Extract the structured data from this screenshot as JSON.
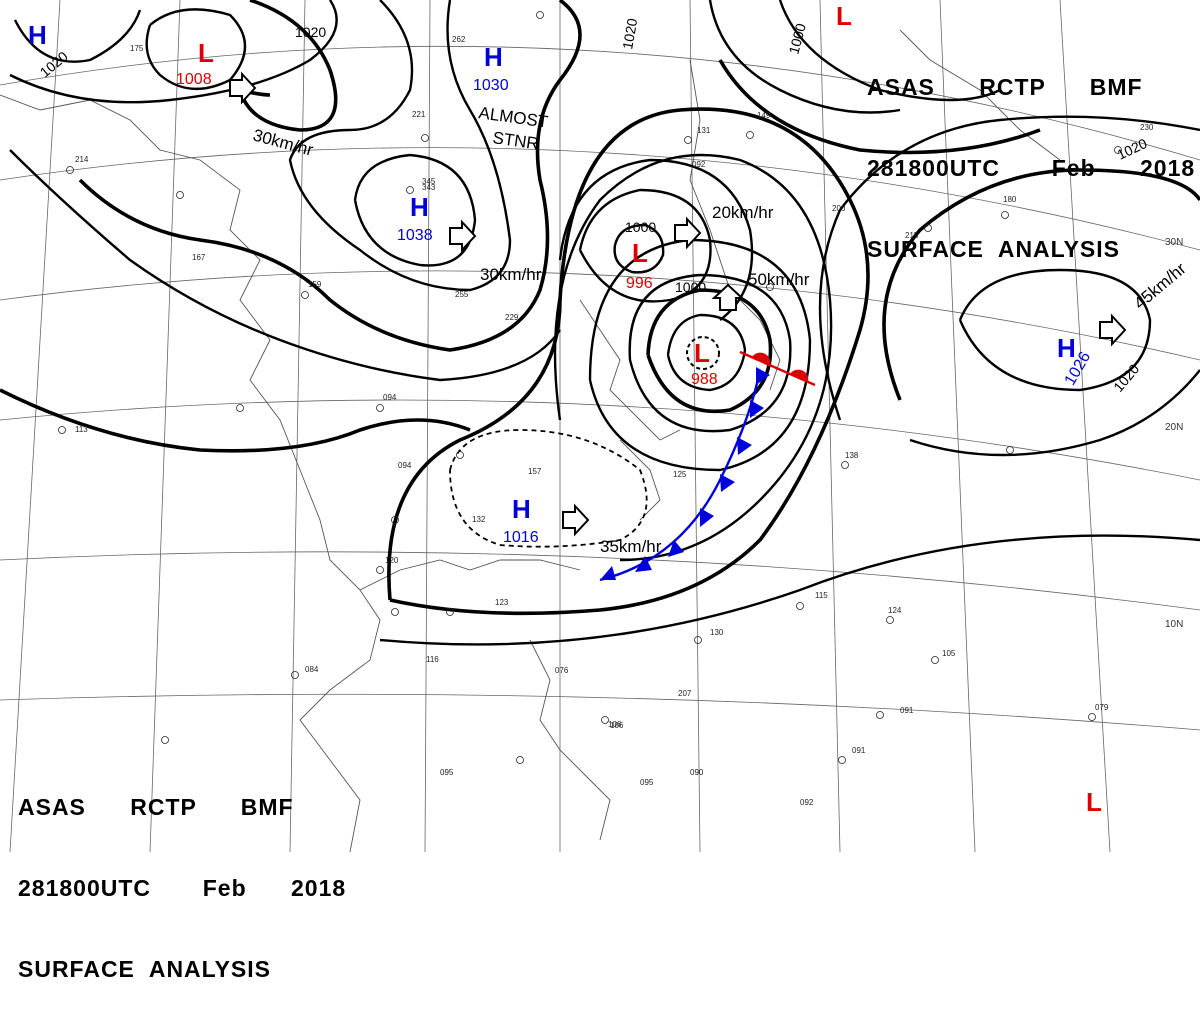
{
  "header": {
    "line1": "ASAS      RCTP      BMF",
    "line2": "281800UTC       Feb      2018",
    "line3": "SURFACE  ANALYSIS"
  },
  "systems": [
    {
      "type": "H",
      "pressure": "",
      "color": "#0000dd"
    },
    {
      "type": "L",
      "pressure": "1008",
      "color": "#dd0000"
    },
    {
      "type": "H",
      "pressure": "1030",
      "color": "#0000dd"
    },
    {
      "type": "H",
      "pressure": "1038",
      "color": "#0000dd"
    },
    {
      "type": "L",
      "pressure": "996",
      "color": "#dd0000"
    },
    {
      "type": "L",
      "pressure": "988",
      "color": "#dd0000"
    },
    {
      "type": "H",
      "pressure": "1016",
      "color": "#0000dd"
    },
    {
      "type": "H",
      "pressure": "1026",
      "color": "#0000dd"
    },
    {
      "type": "L",
      "pressure": "",
      "color": "#dd0000"
    },
    {
      "type": "L",
      "pressure": "",
      "color": "#dd0000"
    }
  ],
  "isobar_labels": [
    "1020",
    "1020",
    "1020",
    "1000",
    "1000",
    "1000",
    "1020",
    "1020"
  ],
  "motion": [
    "30km/hr",
    "30km/hr",
    "20km/hr",
    "50km/hr",
    "45km/hr",
    "35km/hr"
  ],
  "notes": [
    "ALMOST",
    "STNR"
  ],
  "latitudes": [
    "30N",
    "20N",
    "10N"
  ],
  "stations": [
    "214",
    "159",
    "167",
    "094",
    "113",
    "255",
    "229",
    "094",
    "157",
    "132",
    "120",
    "123",
    "084",
    "116",
    "076",
    "106",
    "095",
    "090",
    "095",
    "125",
    "130",
    "207",
    "115",
    "124",
    "105",
    "091",
    "091",
    "092",
    "079",
    "138",
    "200",
    "215",
    "180",
    "230",
    "149",
    "131",
    "092",
    "106",
    "345",
    "175",
    "343",
    "221",
    "262"
  ]
}
